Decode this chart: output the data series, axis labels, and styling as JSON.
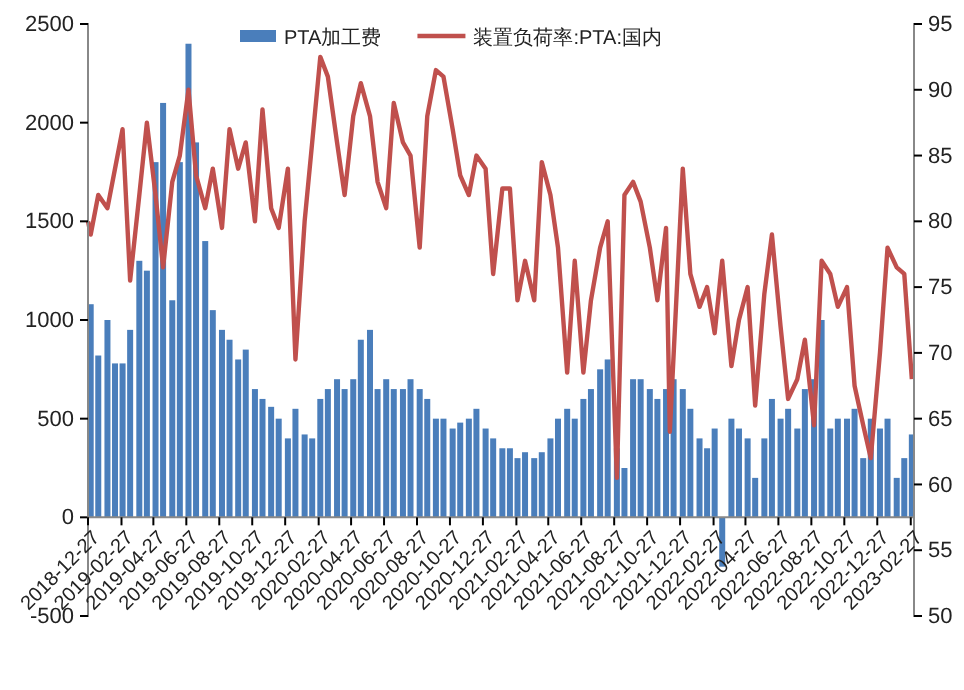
{
  "chart_data": {
    "type": "bar",
    "legend": "top",
    "grid": false,
    "x": [
      "2019-01-01",
      "2019-01-15",
      "2019-02-01",
      "2019-02-15",
      "2019-03-01",
      "2019-03-15",
      "2019-04-01",
      "2019-04-15",
      "2019-05-01",
      "2019-05-15",
      "2019-06-01",
      "2019-06-15",
      "2019-07-01",
      "2019-07-15",
      "2019-08-01",
      "2019-08-15",
      "2019-09-01",
      "2019-09-15",
      "2019-10-01",
      "2019-10-15",
      "2019-11-01",
      "2019-11-15",
      "2019-12-01",
      "2019-12-15",
      "2020-01-01",
      "2020-01-15",
      "2020-02-01",
      "2020-02-15",
      "2020-03-01",
      "2020-03-15",
      "2020-04-01",
      "2020-04-15",
      "2020-05-01",
      "2020-05-15",
      "2020-06-01",
      "2020-06-15",
      "2020-07-01",
      "2020-07-15",
      "2020-08-01",
      "2020-08-15",
      "2020-09-01",
      "2020-09-15",
      "2020-10-01",
      "2020-10-15",
      "2020-11-01",
      "2020-11-15",
      "2020-12-01",
      "2020-12-15",
      "2021-01-01",
      "2021-01-15",
      "2021-02-01",
      "2021-02-15",
      "2021-03-01",
      "2021-03-15",
      "2021-04-01",
      "2021-04-15",
      "2021-05-01",
      "2021-05-15",
      "2021-06-01",
      "2021-06-15",
      "2021-07-01",
      "2021-07-15",
      "2021-08-01",
      "2021-08-15",
      "2021-09-01",
      "2021-09-15",
      "2021-10-01",
      "2021-10-15",
      "2021-11-01",
      "2021-11-15",
      "2021-12-01",
      "2021-12-15",
      "2022-01-01",
      "2022-01-15",
      "2022-02-01",
      "2022-02-15",
      "2022-03-01",
      "2022-03-15",
      "2022-04-01",
      "2022-04-15",
      "2022-05-01",
      "2022-05-15",
      "2022-06-01",
      "2022-06-15",
      "2022-07-01",
      "2022-07-15",
      "2022-08-01",
      "2022-08-15",
      "2022-09-01",
      "2022-09-15",
      "2022-10-01",
      "2022-10-15",
      "2022-11-01",
      "2022-11-15",
      "2022-12-01",
      "2022-12-15",
      "2023-01-01",
      "2023-01-15",
      "2023-02-01",
      "2023-02-15",
      "2023-03-01"
    ],
    "xlim": [
      "2018-12-27",
      "2023-03-05"
    ],
    "xticks": [
      "2018-12-27",
      "2019-02-27",
      "2019-04-27",
      "2019-06-27",
      "2019-08-27",
      "2019-10-27",
      "2019-12-27",
      "2020-02-27",
      "2020-04-27",
      "2020-06-27",
      "2020-08-27",
      "2020-10-27",
      "2020-12-27",
      "2021-02-27",
      "2021-04-27",
      "2021-06-27",
      "2021-08-27",
      "2021-10-27",
      "2021-12-27",
      "2022-02-27",
      "2022-04-27",
      "2022-06-27",
      "2022-08-27",
      "2022-10-27",
      "2022-12-27",
      "2023-02-27"
    ],
    "ylim": [
      -500,
      2500
    ],
    "yticks": [
      -500,
      0,
      500,
      1000,
      1500,
      2000,
      2500
    ],
    "y2lim": [
      50,
      95
    ],
    "y2ticks": [
      50,
      55,
      60,
      65,
      70,
      75,
      80,
      85,
      90,
      95
    ],
    "series": [
      {
        "name": "PTA加工费",
        "axis": "y",
        "color": "#4a7ebb",
        "values": [
          1080,
          820,
          1000,
          780,
          780,
          950,
          1300,
          1250,
          1800,
          2100,
          1100,
          1800,
          2400,
          1900,
          1400,
          1050,
          950,
          900,
          800,
          850,
          650,
          600,
          560,
          500,
          400,
          550,
          420,
          400,
          600,
          650,
          700,
          650,
          700,
          900,
          950,
          650,
          700,
          650,
          650,
          700,
          650,
          600,
          500,
          500,
          450,
          480,
          500,
          550,
          450,
          400,
          350,
          350,
          300,
          330,
          300,
          330,
          400,
          500,
          550,
          500,
          600,
          650,
          750,
          800,
          350,
          250,
          700,
          700,
          650,
          600,
          650,
          700,
          650,
          550,
          400,
          350,
          450,
          -250,
          500,
          450,
          400,
          200,
          400,
          600,
          500,
          550,
          450,
          650,
          700,
          1000,
          450,
          500,
          500,
          550,
          300,
          500,
          450,
          500,
          200,
          300,
          420
        ]
      },
      {
        "name": "装置负荷率:PTA:国内",
        "type": "line",
        "axis": "y2",
        "color": "#c0504d",
        "x": [
          "2018-12-27",
          "2019-01-01",
          "2019-01-15",
          "2019-02-01",
          "2019-02-15",
          "2019-03-01",
          "2019-03-15",
          "2019-04-01",
          "2019-04-15",
          "2019-05-01",
          "2019-05-15",
          "2019-06-01",
          "2019-06-15",
          "2019-07-01",
          "2019-07-15",
          "2019-08-01",
          "2019-08-15",
          "2019-09-01",
          "2019-09-15",
          "2019-10-01",
          "2019-10-15",
          "2019-11-01",
          "2019-11-15",
          "2019-12-01",
          "2019-12-15",
          "2020-01-01",
          "2020-01-15",
          "2020-02-01",
          "2020-02-15",
          "2020-03-01",
          "2020-03-15",
          "2020-04-01",
          "2020-04-15",
          "2020-05-01",
          "2020-05-15",
          "2020-06-01",
          "2020-06-15",
          "2020-07-01",
          "2020-07-15",
          "2020-08-01",
          "2020-08-15",
          "2020-09-01",
          "2020-09-15",
          "2020-10-01",
          "2020-10-15",
          "2020-11-01",
          "2020-11-15",
          "2020-12-01",
          "2020-12-15",
          "2021-01-01",
          "2021-01-15",
          "2021-02-01",
          "2021-02-15",
          "2021-03-01",
          "2021-03-15",
          "2021-04-01",
          "2021-04-15",
          "2021-05-01",
          "2021-05-15",
          "2021-06-01",
          "2021-06-15",
          "2021-07-01",
          "2021-07-15",
          "2021-08-01",
          "2021-08-15",
          "2021-09-01",
          "2021-09-15",
          "2021-10-01",
          "2021-10-15",
          "2021-11-01",
          "2021-11-15",
          "2021-12-01",
          "2021-12-08",
          "2022-01-01",
          "2022-01-15",
          "2022-02-01",
          "2022-02-15",
          "2022-03-01",
          "2022-03-15",
          "2022-04-01",
          "2022-04-15",
          "2022-05-01",
          "2022-05-15",
          "2022-06-01",
          "2022-06-15",
          "2022-07-01",
          "2022-07-15",
          "2022-08-01",
          "2022-08-15",
          "2022-09-01",
          "2022-09-15",
          "2022-10-01",
          "2022-10-15",
          "2022-11-01",
          "2022-11-15",
          "2022-12-01",
          "2022-12-15",
          "2023-01-01",
          "2023-01-15",
          "2023-02-01",
          "2023-02-15",
          "2023-03-01"
        ],
        "values": [
          80,
          79,
          82,
          81,
          84,
          87,
          75.5,
          82,
          87.5,
          82,
          76.5,
          83,
          85,
          90,
          83.5,
          81,
          84,
          79.5,
          87,
          84,
          86,
          80,
          88.5,
          81,
          79.5,
          84,
          69.5,
          80,
          86,
          92.5,
          91,
          86,
          82,
          88,
          90.5,
          88,
          83,
          81,
          89,
          86,
          85,
          78,
          88,
          91.5,
          91,
          87,
          83.5,
          82,
          85,
          84,
          76,
          82.5,
          82.5,
          74,
          77,
          74,
          84.5,
          82,
          78,
          68.5,
          77,
          68.5,
          74,
          78,
          80,
          60.5,
          82,
          83,
          81.5,
          78,
          74,
          79.5,
          64,
          84,
          76,
          73.5,
          75,
          71.5,
          77,
          69,
          72.5,
          75,
          66,
          74.5,
          79,
          72,
          66.5,
          68,
          71,
          64.5,
          77,
          76,
          73.5,
          75,
          67.5,
          64.5,
          62,
          70,
          78,
          76.5,
          76,
          68
        ]
      }
    ],
    "line_style": "solid",
    "marker": "none"
  }
}
